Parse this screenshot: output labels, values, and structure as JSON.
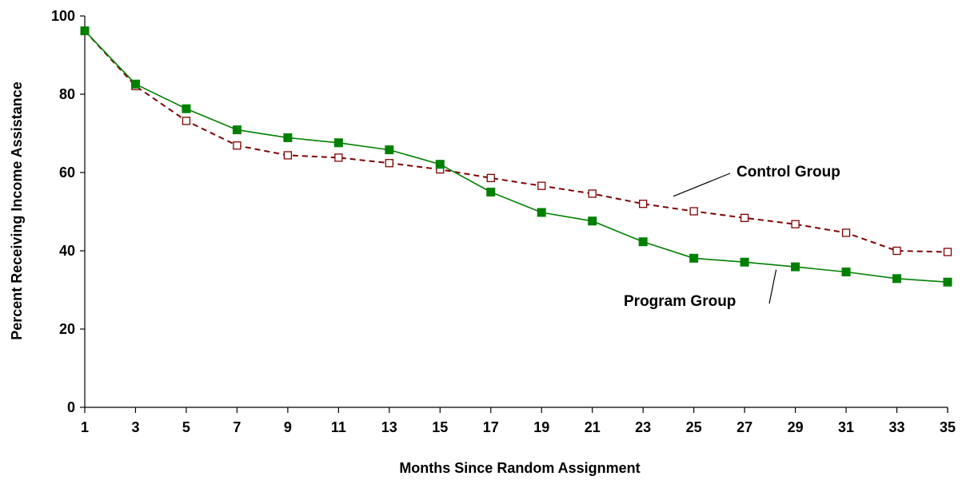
{
  "chart_data": {
    "type": "line",
    "title": "",
    "xlabel": "Months Since Random Assignment",
    "ylabel": "Percent Receiving Income Assistance",
    "x": [
      1,
      3,
      5,
      7,
      9,
      11,
      13,
      15,
      17,
      19,
      21,
      23,
      25,
      27,
      29,
      31,
      33,
      35
    ],
    "xticks": [
      "1",
      "3",
      "5",
      "7",
      "9",
      "11",
      "13",
      "15",
      "17",
      "19",
      "21",
      "23",
      "25",
      "27",
      "29",
      "31",
      "33",
      "35"
    ],
    "yticks": [
      "0",
      "20",
      "40",
      "60",
      "80",
      "100"
    ],
    "xlim": [
      1,
      35
    ],
    "ylim": [
      0,
      100
    ],
    "grid": false,
    "legend": "none",
    "series": [
      {
        "name": "Program Group",
        "color": "#008000",
        "line_style": "solid",
        "marker": "filled-square",
        "values": [
          96.2,
          82.6,
          76.3,
          70.9,
          68.9,
          67.6,
          65.8,
          62.1,
          55.0,
          49.8,
          47.6,
          42.3,
          38.1,
          37.1,
          35.9,
          34.6,
          32.9,
          32.0
        ]
      },
      {
        "name": "Control Group",
        "color": "#800000",
        "line_style": "dashed",
        "marker": "open-square",
        "values": [
          96.2,
          82.1,
          73.2,
          66.9,
          64.4,
          63.8,
          62.4,
          60.8,
          58.6,
          56.6,
          54.6,
          52.0,
          50.1,
          48.4,
          46.8,
          44.6,
          40.0,
          39.7
        ]
      }
    ],
    "annotations": [
      {
        "text": "Control Group",
        "series": "Control Group",
        "points_to": [
          24,
          53.5
        ]
      },
      {
        "text": "Program Group",
        "series": "Program Group",
        "points_to": [
          29,
          36
        ]
      }
    ]
  }
}
